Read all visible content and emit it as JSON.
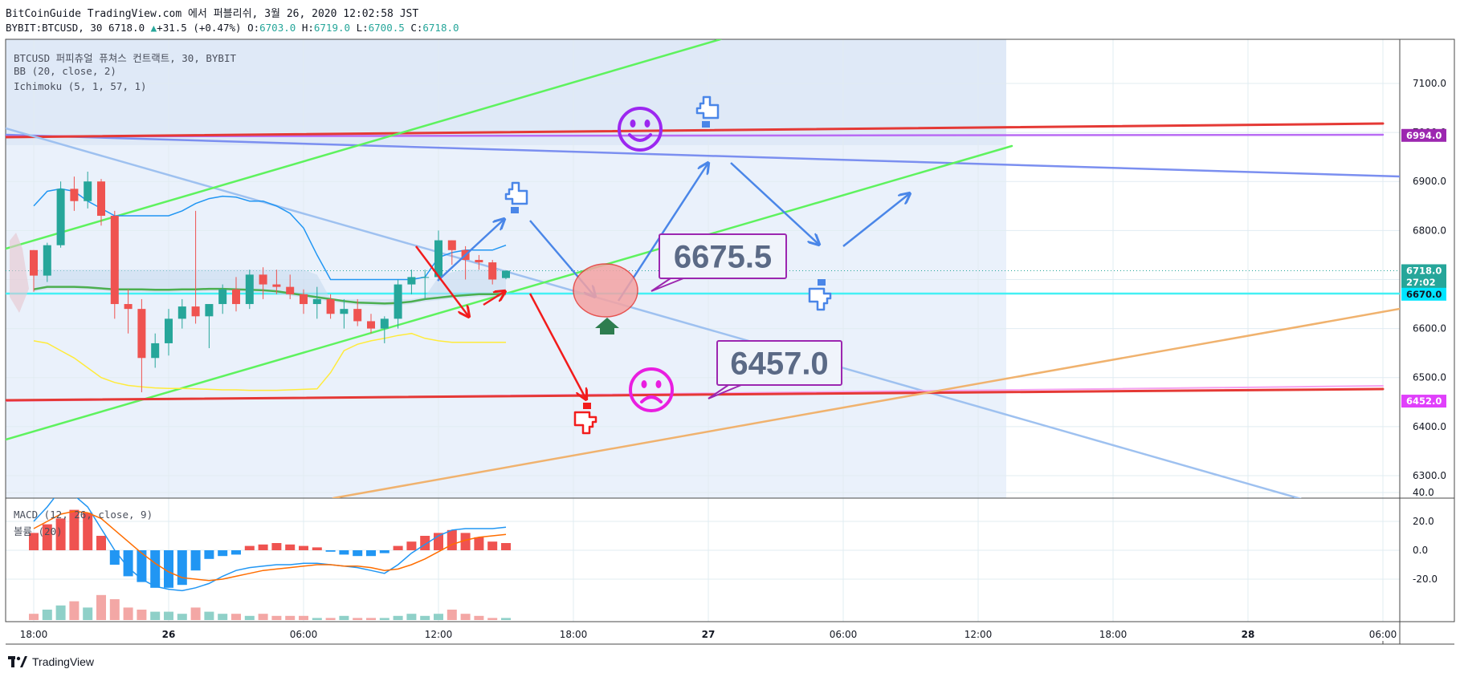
{
  "header": {
    "line1": "BitCoinGuide TradingView.com 에서 퍼블리쉬, 3월 26, 2020 12:02:58 JST",
    "symbol": "BYBIT:BTCUSD, 30",
    "last": "6718.0",
    "change": "+31.5 (+0.47%)",
    "o_label": "O:",
    "o": "6703.0",
    "h_label": "H:",
    "h": "6719.0",
    "l_label": "L:",
    "l": "6700.5",
    "c_label": "C:",
    "c": "6718.0"
  },
  "legend": {
    "title": "BTCUSD 퍼피츄얼 퓨쳐스 컨트랙트, 30, BYBIT",
    "bb": "BB (20, close, 2)",
    "ichimoku": "Ichimoku (5, 1, 57, 1)",
    "macd": "MACD (12, 26, close, 9)",
    "volume": "볼륨 (20)"
  },
  "footer": {
    "brand": "TradingView"
  },
  "annotations": [
    {
      "text": "6675.5",
      "color": "#5b6a86",
      "border": "#9c27b0"
    },
    {
      "text": "6457.0",
      "color": "#5b6a86",
      "border": "#9c27b0"
    }
  ],
  "price_labels": [
    {
      "text": "6994.0",
      "value": 6994,
      "bg": "#9c27b0"
    },
    {
      "text": "6718.0",
      "value": 6718,
      "bg": "#26a69a"
    },
    {
      "text": "27:02",
      "value": 6694,
      "bg": "#26a69a"
    },
    {
      "text": "6670.0",
      "value": 6670,
      "bg": "#00e5ff",
      "fg": "#131722"
    },
    {
      "text": "6452.0",
      "value": 6452,
      "bg": "#e040fb"
    }
  ],
  "colors": {
    "up": "#26a69a",
    "down": "#ef5350",
    "bb": "#2196f3",
    "cloud": "#c5d8ee",
    "green_line": "#4caf50",
    "yellow_line": "#ffeb3b",
    "trend_green": "#5ef25e",
    "trend_red": "#e53935",
    "trend_blue": "#7b8ff0",
    "trend_orange": "#f0b26e",
    "trend_lightblue": "#9ec1f0",
    "arrow_blue": "#4a86e8",
    "arrow_red": "#f21c1c",
    "smiley_purple": "#9c27f0",
    "frown_magenta": "#e91ee0",
    "cyan_line": "#44f0f4"
  },
  "chart_data": [
    {
      "type": "candlestick",
      "title": "BTCUSD 퍼피츄얼 퓨쳐스 컨트랙트, 30, BYBIT",
      "x_ticks": [
        "18:00",
        "26",
        "06:00",
        "12:00",
        "18:00",
        "27",
        "06:00",
        "12:00",
        "18:00",
        "28",
        "06:00"
      ],
      "y_ticks": [
        "7100.0",
        "7000.0",
        "6900.0",
        "6800.0",
        "6700.0",
        "6600.0",
        "6500.0",
        "6400.0",
        "6300.0"
      ],
      "ylim": [
        6250,
        7190
      ],
      "candles": [
        [
          6760,
          6760,
          6675,
          6708
        ],
        [
          6708,
          6775,
          6695,
          6770
        ],
        [
          6770,
          6900,
          6765,
          6885
        ],
        [
          6885,
          6910,
          6840,
          6860
        ],
        [
          6860,
          6920,
          6845,
          6900
        ],
        [
          6900,
          6905,
          6810,
          6830
        ],
        [
          6830,
          6840,
          6620,
          6650
        ],
        [
          6650,
          6680,
          6590,
          6640
        ],
        [
          6640,
          6660,
          6470,
          6540
        ],
        [
          6540,
          6590,
          6520,
          6570
        ],
        [
          6570,
          6640,
          6545,
          6620
        ],
        [
          6620,
          6660,
          6600,
          6645
        ],
        [
          6645,
          6840,
          6610,
          6625
        ],
        [
          6625,
          6650,
          6560,
          6650
        ],
        [
          6650,
          6690,
          6630,
          6680
        ],
        [
          6680,
          6705,
          6635,
          6650
        ],
        [
          6650,
          6720,
          6640,
          6710
        ],
        [
          6710,
          6725,
          6660,
          6690
        ],
        [
          6690,
          6720,
          6670,
          6685
        ],
        [
          6685,
          6710,
          6660,
          6670
        ],
        [
          6670,
          6680,
          6630,
          6650
        ],
        [
          6650,
          6685,
          6620,
          6660
        ],
        [
          6660,
          6670,
          6620,
          6630
        ],
        [
          6630,
          6660,
          6600,
          6640
        ],
        [
          6640,
          6660,
          6605,
          6615
        ],
        [
          6615,
          6630,
          6590,
          6600
        ],
        [
          6600,
          6625,
          6570,
          6620
        ],
        [
          6620,
          6700,
          6600,
          6690
        ],
        [
          6690,
          6720,
          6670,
          6705
        ],
        [
          6705,
          6720,
          6660,
          6705
        ],
        [
          6705,
          6800,
          6700,
          6780
        ],
        [
          6780,
          6780,
          6730,
          6760
        ],
        [
          6760,
          6768,
          6700,
          6740
        ],
        [
          6740,
          6750,
          6720,
          6735
        ],
        [
          6735,
          6740,
          6690,
          6700
        ],
        [
          6703,
          6719,
          6700.5,
          6718
        ]
      ],
      "bb_upper": [
        6850,
        6880,
        6885,
        6880,
        6860,
        6845,
        6830,
        6830,
        6830,
        6830,
        6830,
        6840,
        6855,
        6865,
        6870,
        6868,
        6860,
        6860,
        6850,
        6835,
        6805,
        6750,
        6700,
        6700,
        6700,
        6700,
        6700,
        6700,
        6700,
        6705,
        6745,
        6755,
        6760,
        6760,
        6760,
        6770
      ],
      "ichimoku_green": [
        6680,
        6685,
        6685,
        6685,
        6684,
        6682,
        6680,
        6680,
        6680,
        6679,
        6679,
        6680,
        6680,
        6681,
        6681,
        6680,
        6679,
        6678,
        6676,
        6672,
        6668,
        6664,
        6660,
        6656,
        6653,
        6652,
        6651,
        6652,
        6655,
        6660,
        6663,
        6666,
        6668,
        6670,
        6670,
        6671
      ],
      "ichimoku_yellow": [
        6575,
        6570,
        6555,
        6540,
        6520,
        6500,
        6490,
        6484,
        6481,
        6479,
        6478,
        6478,
        6477,
        6476,
        6475,
        6475,
        6474,
        6474,
        6474,
        6475,
        6476,
        6477,
        6510,
        6555,
        6568,
        6575,
        6580,
        6586,
        6590,
        6580,
        6575,
        6572,
        6572,
        6572,
        6572,
        6572
      ],
      "macd": [
        20,
        30,
        42,
        38,
        30,
        15,
        0,
        -12,
        -20,
        -25,
        -27,
        -28,
        -26,
        -23,
        -18,
        -14,
        -12,
        -11,
        -10,
        -10,
        -9,
        -9,
        -10,
        -11,
        -12,
        -14,
        -16,
        -10,
        -2,
        4,
        10,
        14,
        15,
        15,
        15,
        16
      ],
      "signal": [
        15,
        20,
        25,
        27,
        26,
        22,
        14,
        6,
        -2,
        -9,
        -15,
        -19,
        -20,
        -21,
        -20,
        -18,
        -16,
        -14,
        -13,
        -12,
        -11,
        -10,
        -10,
        -11,
        -11,
        -12,
        -14,
        -13,
        -10,
        -6,
        -1,
        4,
        7,
        9,
        10,
        11
      ],
      "histogram": [
        12,
        18,
        22,
        28,
        26,
        10,
        -10,
        -18,
        -22,
        -26,
        -26,
        -24,
        -14,
        -6,
        -4,
        -3,
        3,
        4,
        5,
        4,
        3,
        2,
        -1,
        -3,
        -4,
        -4,
        -2,
        3,
        6,
        10,
        12,
        14,
        12,
        9,
        6,
        5
      ],
      "volume": [
        3,
        5,
        7,
        9,
        6,
        12,
        10,
        6,
        5,
        4,
        4,
        3,
        6,
        4,
        3,
        3,
        2,
        3,
        2,
        2,
        2,
        1,
        1,
        2,
        1,
        1,
        1,
        2,
        3,
        2,
        3,
        5,
        3,
        2,
        1,
        1
      ],
      "macd_y_ticks": [
        "40.0",
        "20.0",
        "0.0",
        "-20.0"
      ]
    }
  ]
}
